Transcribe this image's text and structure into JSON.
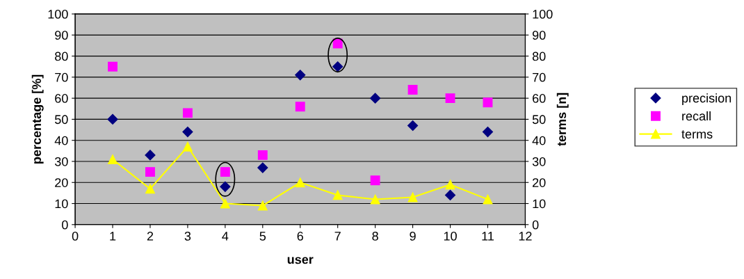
{
  "chart_data": {
    "type": "scatter",
    "xlabel": "user",
    "ylabel": "percentage [%]",
    "y2label": "terms [n]",
    "x": [
      1,
      2,
      3,
      4,
      5,
      6,
      7,
      8,
      9,
      10,
      11
    ],
    "series": [
      {
        "name": "precision",
        "color": "#000080",
        "marker": "diamond",
        "values": [
          50,
          33,
          44,
          18,
          27,
          71,
          75,
          60,
          47,
          14,
          44
        ]
      },
      {
        "name": "recall",
        "color": "#ff00ff",
        "marker": "square",
        "values": [
          75,
          25,
          53,
          25,
          33,
          56,
          86,
          21,
          64,
          60,
          58
        ]
      },
      {
        "name": "terms",
        "color": "#ffff00",
        "type": "line",
        "marker": "triangle",
        "axis": "y2",
        "values": [
          31,
          17,
          37,
          10,
          9,
          20,
          14,
          12,
          13,
          19,
          12
        ]
      }
    ],
    "xlim": [
      0,
      12
    ],
    "xticks": [
      0,
      1,
      2,
      3,
      4,
      5,
      6,
      7,
      8,
      9,
      10,
      11,
      12
    ],
    "ylim": [
      0,
      100
    ],
    "yticks": [
      0,
      10,
      20,
      30,
      40,
      50,
      60,
      70,
      80,
      90,
      100
    ],
    "y2lim": [
      0,
      100
    ],
    "y2ticks": [
      0,
      10,
      20,
      30,
      40,
      50,
      60,
      70,
      80,
      90,
      100
    ],
    "grid": "y",
    "legend": "right"
  }
}
